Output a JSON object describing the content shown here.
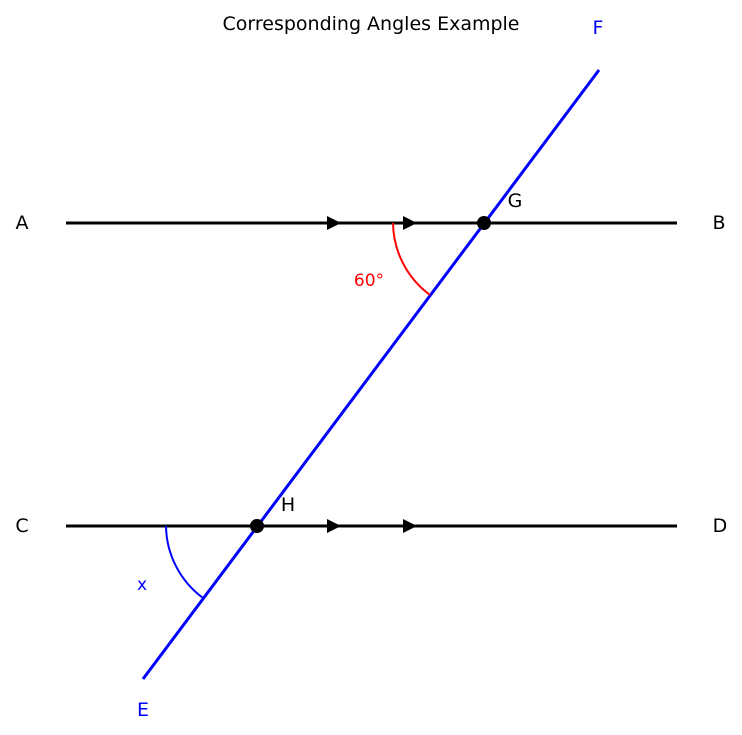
{
  "title": "Corresponding Angles Example",
  "colors": {
    "parallel_lines": "#000000",
    "transversal": "#0000ff",
    "given_angle": "#ff0000",
    "unknown_angle": "#0000ff",
    "background": "#ffffff"
  },
  "labels": {
    "A": "A",
    "B": "B",
    "C": "C",
    "D": "D",
    "E": "E",
    "F": "F",
    "G": "G",
    "H": "H"
  },
  "angles": {
    "given": {
      "value": "60°",
      "degrees": 60
    },
    "unknown": {
      "value": "x"
    }
  },
  "elements": {
    "parallel_lines": [
      "line AB",
      "line CD"
    ],
    "transversal": "line EF",
    "intersections": [
      "G",
      "H"
    ],
    "parallel_markers_per_line": 2
  }
}
